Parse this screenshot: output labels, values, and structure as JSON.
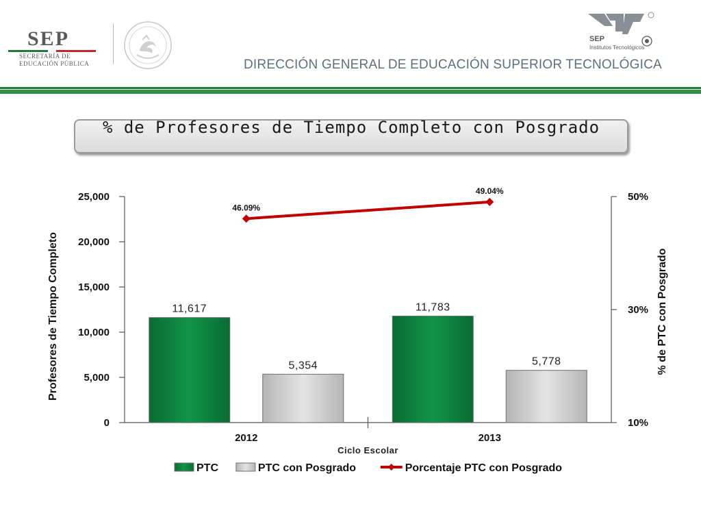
{
  "header": {
    "logo_text": "SEP",
    "logo_subtitle_line1": "SECRETARÍA DE",
    "logo_subtitle_line2": "EDUCACIÓN PÚBLICA",
    "right_logo_text": "SEP",
    "right_logo_subtitle": "Institutos Tecnológicos",
    "title": "DIRECCIÓN GENERAL DE EDUCACIÓN SUPERIOR TECNOLÓGICA",
    "colors": {
      "green": "#1e7d37",
      "red": "#c1272d",
      "title_gray": "#5f6e80"
    }
  },
  "slide_title": "% de Profesores de Tiempo Completo con Posgrado",
  "chart_data": {
    "type": "bar",
    "categories": [
      "2012",
      "2013"
    ],
    "series": [
      {
        "name": "PTC",
        "kind": "bar",
        "axis": "left",
        "color": "#0f8440",
        "values": [
          11617,
          11783
        ],
        "labels": [
          "11,617",
          "11,783"
        ]
      },
      {
        "name": "PTC con Posgrado",
        "kind": "bar",
        "axis": "left",
        "color": "#d4d4d4",
        "values": [
          5354,
          5778
        ],
        "labels": [
          "5,354",
          "5,778"
        ]
      },
      {
        "name": "Porcentaje PTC con Posgrado",
        "kind": "line",
        "axis": "right",
        "color": "#c00000",
        "values": [
          46.09,
          49.04
        ],
        "labels": [
          "46.09%",
          "49.04%"
        ]
      }
    ],
    "xlabel": "Ciclo Escolar",
    "ylabel": "Profesores de Tiempo Completo",
    "y2label": "% de PTC con Posgrado",
    "ylim": [
      0,
      25000
    ],
    "y2lim": [
      10,
      50
    ],
    "y_ticks": [
      0,
      5000,
      10000,
      15000,
      20000,
      25000
    ],
    "y_tick_labels": [
      "0",
      "5,000",
      "10,000",
      "15,000",
      "20,000",
      "25,000"
    ],
    "y2_ticks": [
      10,
      30,
      50
    ],
    "y2_tick_labels": [
      "10%",
      "30%",
      "50%"
    ],
    "grid": false,
    "legend_position": "bottom"
  }
}
